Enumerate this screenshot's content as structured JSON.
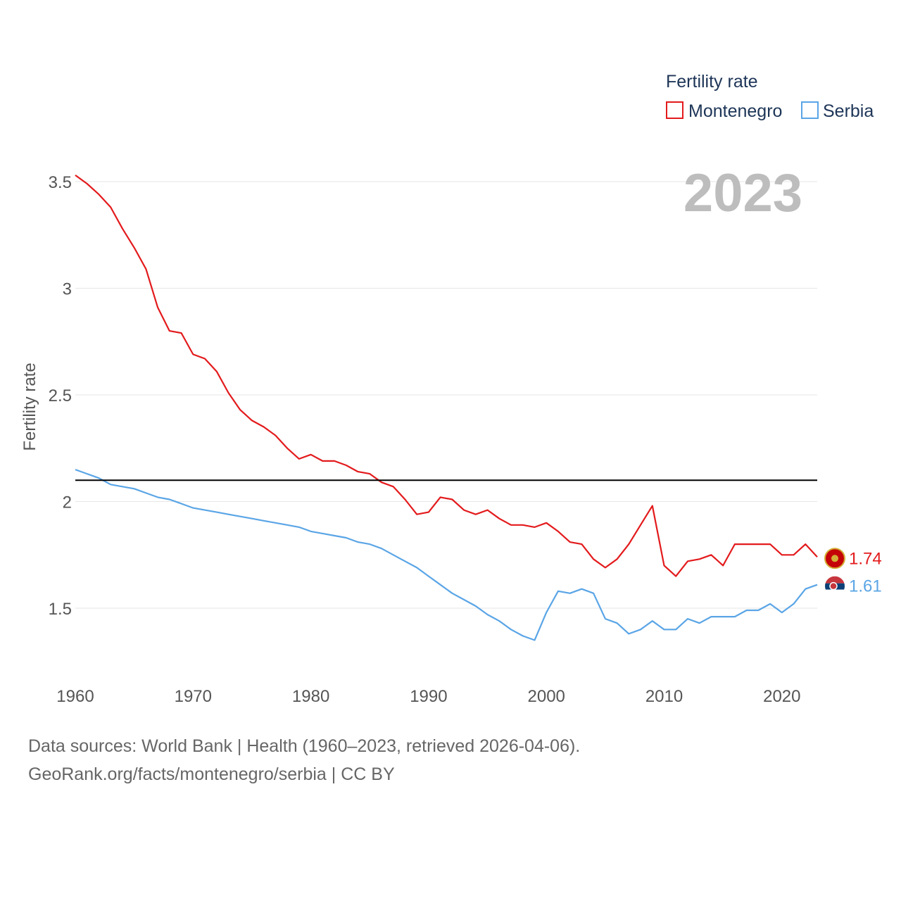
{
  "legend": {
    "title": "Fertility rate",
    "items": [
      {
        "name": "Montenegro",
        "color": "#e31a1c"
      },
      {
        "name": "Serbia",
        "color": "#5aa5e6"
      }
    ]
  },
  "current_year": "2023",
  "end_labels": {
    "montenegro": "1.74",
    "serbia": "1.61"
  },
  "source_lines": [
    "Data sources: World Bank | Health (1960–2023, retrieved 2026-04-06).",
    "GeoRank.org/facts/montenegro/serbia | CC BY"
  ],
  "chart_data": {
    "type": "line",
    "ylabel": "Fertility rate",
    "xlabel": "",
    "xlim": [
      1960,
      2023
    ],
    "ylim": [
      1.3,
      3.55
    ],
    "yticks": [
      1.5,
      2,
      2.5,
      3,
      3.5
    ],
    "ytick_labels": [
      "1.5",
      "2",
      "2.5",
      "3",
      "3.5"
    ],
    "xticks": [
      1960,
      1970,
      1980,
      1990,
      2000,
      2010,
      2020
    ],
    "xtick_labels": [
      "1960",
      "1970",
      "1980",
      "1990",
      "2000",
      "2010",
      "2020"
    ],
    "reference_line": 2.1,
    "x": [
      1960,
      1961,
      1962,
      1963,
      1964,
      1965,
      1966,
      1967,
      1968,
      1969,
      1970,
      1971,
      1972,
      1973,
      1974,
      1975,
      1976,
      1977,
      1978,
      1979,
      1980,
      1981,
      1982,
      1983,
      1984,
      1985,
      1986,
      1987,
      1988,
      1989,
      1990,
      1991,
      1992,
      1993,
      1994,
      1995,
      1996,
      1997,
      1998,
      1999,
      2000,
      2001,
      2002,
      2003,
      2004,
      2005,
      2006,
      2007,
      2008,
      2009,
      2010,
      2011,
      2012,
      2013,
      2014,
      2015,
      2016,
      2017,
      2018,
      2019,
      2020,
      2021,
      2022,
      2023
    ],
    "series": [
      {
        "name": "Montenegro",
        "color": "#e31a1c",
        "values": [
          3.53,
          3.49,
          3.44,
          3.38,
          3.28,
          3.19,
          3.09,
          2.91,
          2.8,
          2.79,
          2.69,
          2.67,
          2.61,
          2.51,
          2.43,
          2.38,
          2.35,
          2.31,
          2.25,
          2.2,
          2.22,
          2.19,
          2.19,
          2.17,
          2.14,
          2.13,
          2.09,
          2.07,
          2.01,
          1.94,
          1.95,
          2.02,
          2.01,
          1.96,
          1.94,
          1.96,
          1.92,
          1.89,
          1.89,
          1.88,
          1.9,
          1.86,
          1.81,
          1.8,
          1.73,
          1.69,
          1.73,
          1.8,
          1.89,
          1.98,
          1.7,
          1.65,
          1.72,
          1.73,
          1.75,
          1.7,
          1.8,
          1.8,
          1.8,
          1.8,
          1.75,
          1.75,
          1.8,
          1.74
        ]
      },
      {
        "name": "Serbia",
        "color": "#5aa5e6",
        "values": [
          2.15,
          2.13,
          2.11,
          2.08,
          2.07,
          2.06,
          2.04,
          2.02,
          2.01,
          1.99,
          1.97,
          1.96,
          1.95,
          1.94,
          1.93,
          1.92,
          1.91,
          1.9,
          1.89,
          1.88,
          1.86,
          1.85,
          1.84,
          1.83,
          1.81,
          1.8,
          1.78,
          1.75,
          1.72,
          1.69,
          1.65,
          1.61,
          1.57,
          1.54,
          1.51,
          1.47,
          1.44,
          1.4,
          1.37,
          1.35,
          1.48,
          1.58,
          1.57,
          1.59,
          1.57,
          1.45,
          1.43,
          1.38,
          1.4,
          1.44,
          1.4,
          1.4,
          1.45,
          1.43,
          1.46,
          1.46,
          1.46,
          1.49,
          1.49,
          1.52,
          1.48,
          1.52,
          1.59,
          1.61
        ]
      }
    ]
  }
}
